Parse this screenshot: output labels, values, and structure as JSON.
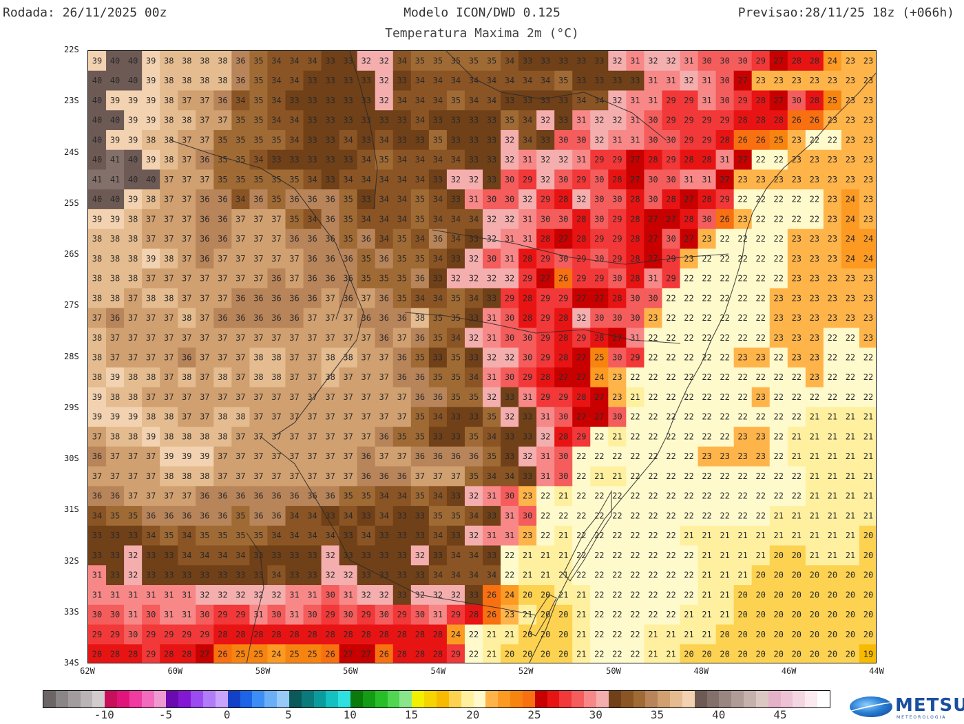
{
  "header": {
    "run": "Rodada: 26/11/2025 00z",
    "model": "Modelo ICON/DWD 0.125",
    "valid": "Previsao:28/11/25 18z (+066h)",
    "subtitle": "Temperatura Maxima 2m (°C)"
  },
  "map": {
    "lat_labels": [
      "22S",
      "23S",
      "24S",
      "25S",
      "26S",
      "27S",
      "28S",
      "29S",
      "30S",
      "31S",
      "32S",
      "33S",
      "34S"
    ],
    "lon_labels": [
      "62W",
      "60W",
      "58W",
      "56W",
      "54W",
      "52W",
      "50W",
      "48W",
      "46W",
      "44W"
    ],
    "lon_range": [
      -62,
      -44
    ],
    "lat_range": [
      -22,
      -34
    ],
    "value_grid": [
      [
        39,
        40,
        40,
        39,
        38,
        38,
        38,
        38,
        36,
        35,
        34,
        34,
        34,
        33,
        33,
        32,
        32,
        34,
        35,
        35,
        35,
        35,
        35,
        34,
        33,
        33,
        33,
        33,
        33,
        32,
        31,
        32,
        32,
        31,
        30,
        30,
        30,
        29,
        27,
        28,
        28,
        24,
        23,
        23
      ],
      [
        40,
        40,
        40,
        39,
        38,
        38,
        38,
        38,
        36,
        35,
        34,
        34,
        33,
        33,
        33,
        33,
        32,
        33,
        34,
        34,
        34,
        34,
        34,
        34,
        34,
        34,
        35,
        33,
        33,
        33,
        33,
        31,
        31,
        32,
        31,
        30,
        27,
        23,
        23,
        23,
        23,
        23,
        23,
        23
      ],
      [
        40,
        39,
        39,
        39,
        38,
        37,
        37,
        36,
        34,
        35,
        34,
        33,
        33,
        33,
        33,
        33,
        32,
        34,
        34,
        34,
        35,
        34,
        34,
        33,
        33,
        33,
        33,
        34,
        34,
        32,
        31,
        31,
        29,
        29,
        31,
        30,
        29,
        28,
        27,
        30,
        28,
        25,
        23,
        23
      ],
      [
        40,
        40,
        39,
        39,
        38,
        38,
        37,
        37,
        35,
        35,
        34,
        34,
        33,
        33,
        33,
        33,
        33,
        33,
        34,
        33,
        33,
        33,
        33,
        35,
        34,
        32,
        33,
        31,
        32,
        32,
        31,
        30,
        29,
        29,
        29,
        29,
        28,
        28,
        28,
        26,
        26,
        23,
        23,
        23
      ],
      [
        40,
        39,
        39,
        38,
        38,
        37,
        37,
        35,
        35,
        35,
        35,
        34,
        33,
        33,
        34,
        33,
        34,
        33,
        33,
        35,
        33,
        33,
        33,
        32,
        34,
        33,
        30,
        30,
        32,
        31,
        31,
        30,
        30,
        29,
        29,
        28,
        26,
        26,
        25,
        23,
        22,
        22,
        23,
        23
      ],
      [
        40,
        41,
        40,
        39,
        38,
        37,
        36,
        35,
        35,
        34,
        33,
        33,
        33,
        33,
        33,
        34,
        35,
        34,
        34,
        34,
        34,
        33,
        33,
        32,
        31,
        32,
        32,
        31,
        29,
        29,
        27,
        28,
        29,
        28,
        28,
        31,
        27,
        22,
        22,
        23,
        23,
        23,
        23,
        23
      ],
      [
        41,
        41,
        40,
        40,
        37,
        37,
        37,
        35,
        35,
        35,
        35,
        35,
        34,
        33,
        34,
        34,
        34,
        34,
        34,
        33,
        32,
        32,
        33,
        30,
        29,
        32,
        30,
        29,
        30,
        28,
        27,
        30,
        30,
        31,
        31,
        27,
        23,
        23,
        23,
        23,
        23,
        23,
        23,
        23
      ],
      [
        40,
        40,
        39,
        38,
        37,
        37,
        36,
        36,
        34,
        36,
        35,
        36,
        36,
        36,
        35,
        33,
        34,
        34,
        35,
        34,
        33,
        31,
        30,
        30,
        32,
        29,
        28,
        32,
        30,
        30,
        28,
        30,
        28,
        27,
        28,
        29,
        22,
        22,
        22,
        22,
        22,
        23,
        24,
        23
      ],
      [
        39,
        39,
        38,
        37,
        37,
        37,
        36,
        36,
        37,
        37,
        37,
        35,
        34,
        36,
        35,
        34,
        34,
        34,
        35,
        34,
        34,
        34,
        32,
        32,
        31,
        30,
        30,
        28,
        30,
        29,
        28,
        27,
        27,
        28,
        30,
        26,
        23,
        22,
        22,
        22,
        22,
        23,
        24,
        23
      ],
      [
        38,
        38,
        38,
        37,
        37,
        37,
        36,
        36,
        37,
        37,
        37,
        36,
        36,
        36,
        35,
        36,
        34,
        35,
        34,
        36,
        34,
        33,
        32,
        31,
        31,
        28,
        27,
        28,
        29,
        29,
        28,
        27,
        30,
        27,
        23,
        22,
        22,
        22,
        22,
        23,
        23,
        23,
        24,
        24
      ],
      [
        38,
        38,
        38,
        39,
        38,
        37,
        36,
        37,
        37,
        37,
        37,
        37,
        36,
        36,
        36,
        35,
        36,
        35,
        35,
        34,
        33,
        32,
        30,
        31,
        28,
        29,
        30,
        29,
        30,
        29,
        28,
        27,
        29,
        23,
        22,
        22,
        22,
        22,
        22,
        23,
        23,
        23,
        24,
        24
      ],
      [
        38,
        38,
        38,
        37,
        37,
        37,
        37,
        37,
        37,
        37,
        36,
        37,
        36,
        36,
        36,
        35,
        35,
        35,
        36,
        33,
        32,
        32,
        32,
        32,
        29,
        27,
        26,
        29,
        29,
        30,
        28,
        31,
        29,
        22,
        22,
        22,
        22,
        22,
        22,
        23,
        23,
        23,
        23,
        23
      ],
      [
        38,
        38,
        37,
        38,
        38,
        37,
        37,
        37,
        36,
        36,
        36,
        36,
        36,
        37,
        36,
        37,
        36,
        35,
        34,
        34,
        35,
        34,
        33,
        29,
        28,
        29,
        29,
        27,
        27,
        28,
        30,
        30,
        22,
        22,
        22,
        22,
        22,
        22,
        23,
        23,
        23,
        23,
        23,
        23
      ],
      [
        37,
        36,
        37,
        37,
        37,
        38,
        37,
        36,
        36,
        36,
        36,
        36,
        37,
        37,
        37,
        36,
        36,
        36,
        38,
        35,
        35,
        33,
        31,
        30,
        28,
        29,
        28,
        32,
        30,
        30,
        30,
        23,
        22,
        22,
        22,
        22,
        22,
        22,
        23,
        23,
        23,
        23,
        23,
        23
      ],
      [
        38,
        37,
        37,
        37,
        37,
        37,
        37,
        37,
        37,
        37,
        37,
        37,
        37,
        37,
        37,
        37,
        36,
        37,
        36,
        35,
        34,
        32,
        31,
        30,
        30,
        29,
        28,
        29,
        28,
        27,
        31,
        22,
        22,
        22,
        22,
        22,
        22,
        22,
        23,
        23,
        23,
        22,
        22,
        23
      ],
      [
        38,
        37,
        37,
        37,
        37,
        36,
        37,
        37,
        37,
        38,
        38,
        37,
        37,
        38,
        38,
        37,
        37,
        36,
        35,
        33,
        35,
        33,
        32,
        32,
        30,
        29,
        28,
        27,
        25,
        30,
        29,
        22,
        22,
        22,
        22,
        22,
        23,
        23,
        22,
        23,
        23,
        22,
        22,
        22
      ],
      [
        38,
        39,
        38,
        38,
        37,
        38,
        37,
        38,
        37,
        38,
        38,
        37,
        37,
        38,
        37,
        37,
        37,
        36,
        36,
        35,
        35,
        34,
        31,
        30,
        29,
        28,
        27,
        27,
        24,
        23,
        22,
        22,
        22,
        22,
        22,
        22,
        22,
        22,
        22,
        22,
        23,
        22,
        22,
        22
      ],
      [
        39,
        38,
        38,
        37,
        37,
        37,
        37,
        37,
        37,
        37,
        37,
        37,
        37,
        37,
        37,
        37,
        37,
        37,
        36,
        36,
        35,
        35,
        32,
        33,
        31,
        29,
        29,
        28,
        27,
        23,
        21,
        22,
        22,
        22,
        22,
        22,
        22,
        23,
        22,
        22,
        22,
        22,
        22,
        22
      ],
      [
        39,
        39,
        39,
        38,
        38,
        37,
        37,
        38,
        38,
        37,
        37,
        37,
        37,
        37,
        37,
        37,
        37,
        37,
        35,
        34,
        33,
        33,
        35,
        32,
        33,
        31,
        30,
        27,
        27,
        30,
        22,
        22,
        22,
        22,
        22,
        22,
        22,
        22,
        22,
        22,
        21,
        21,
        21,
        21
      ],
      [
        37,
        38,
        38,
        39,
        38,
        38,
        38,
        38,
        37,
        37,
        37,
        37,
        37,
        37,
        37,
        37,
        36,
        35,
        35,
        33,
        33,
        35,
        34,
        33,
        33,
        32,
        28,
        29,
        22,
        21,
        22,
        22,
        22,
        22,
        22,
        22,
        23,
        23,
        22,
        21,
        21,
        21,
        21,
        21
      ],
      [
        36,
        37,
        37,
        37,
        39,
        39,
        39,
        37,
        37,
        37,
        37,
        37,
        37,
        37,
        37,
        36,
        37,
        37,
        36,
        36,
        36,
        36,
        35,
        33,
        32,
        31,
        30,
        22,
        22,
        22,
        22,
        22,
        22,
        22,
        23,
        23,
        23,
        23,
        22,
        21,
        21,
        21,
        21,
        21
      ],
      [
        37,
        37,
        37,
        37,
        38,
        38,
        38,
        37,
        37,
        37,
        37,
        37,
        37,
        37,
        37,
        36,
        36,
        36,
        37,
        37,
        37,
        35,
        34,
        34,
        33,
        31,
        30,
        22,
        21,
        21,
        22,
        22,
        22,
        22,
        22,
        22,
        22,
        22,
        22,
        22,
        21,
        21,
        21,
        21
      ],
      [
        36,
        36,
        37,
        37,
        37,
        37,
        36,
        36,
        36,
        36,
        36,
        36,
        36,
        36,
        35,
        35,
        34,
        34,
        35,
        34,
        33,
        32,
        31,
        30,
        23,
        22,
        21,
        22,
        22,
        22,
        22,
        22,
        22,
        22,
        22,
        22,
        22,
        22,
        22,
        22,
        21,
        21,
        21,
        21
      ],
      [
        34,
        35,
        35,
        36,
        36,
        36,
        36,
        36,
        35,
        36,
        36,
        34,
        34,
        33,
        34,
        33,
        34,
        33,
        33,
        35,
        35,
        34,
        33,
        31,
        30,
        22,
        22,
        22,
        22,
        22,
        22,
        22,
        22,
        22,
        22,
        22,
        22,
        22,
        21,
        21,
        21,
        21,
        21,
        21
      ],
      [
        33,
        33,
        33,
        34,
        35,
        34,
        35,
        35,
        35,
        35,
        34,
        34,
        34,
        34,
        33,
        34,
        33,
        33,
        33,
        34,
        33,
        32,
        31,
        31,
        23,
        22,
        21,
        22,
        22,
        22,
        22,
        22,
        22,
        21,
        21,
        21,
        21,
        21,
        21,
        21,
        21,
        21,
        21,
        20
      ],
      [
        33,
        33,
        32,
        33,
        33,
        34,
        34,
        34,
        34,
        33,
        33,
        33,
        33,
        32,
        33,
        33,
        33,
        33,
        32,
        33,
        34,
        34,
        33,
        22,
        21,
        21,
        21,
        22,
        22,
        22,
        22,
        22,
        22,
        22,
        21,
        21,
        21,
        21,
        20,
        20,
        21,
        21,
        21,
        20
      ],
      [
        31,
        33,
        32,
        33,
        33,
        33,
        33,
        33,
        33,
        33,
        34,
        33,
        33,
        32,
        32,
        33,
        33,
        33,
        33,
        34,
        34,
        34,
        34,
        22,
        21,
        21,
        21,
        22,
        22,
        22,
        22,
        22,
        22,
        22,
        21,
        21,
        21,
        20,
        20,
        20,
        20,
        20,
        20,
        20
      ],
      [
        31,
        31,
        31,
        31,
        31,
        31,
        32,
        32,
        32,
        32,
        32,
        31,
        31,
        30,
        31,
        32,
        32,
        33,
        32,
        32,
        32,
        33,
        26,
        24,
        20,
        20,
        21,
        21,
        22,
        22,
        22,
        22,
        22,
        22,
        21,
        21,
        20,
        20,
        20,
        20,
        20,
        20,
        20,
        20
      ],
      [
        30,
        30,
        31,
        30,
        31,
        31,
        30,
        29,
        29,
        31,
        30,
        31,
        30,
        29,
        30,
        29,
        30,
        29,
        30,
        31,
        29,
        28,
        26,
        23,
        21,
        20,
        20,
        21,
        22,
        22,
        22,
        22,
        22,
        21,
        21,
        21,
        20,
        20,
        20,
        20,
        20,
        20,
        20,
        20
      ],
      [
        29,
        29,
        30,
        29,
        29,
        29,
        29,
        28,
        28,
        28,
        28,
        28,
        28,
        28,
        28,
        28,
        28,
        28,
        28,
        28,
        24,
        22,
        21,
        21,
        20,
        20,
        20,
        21,
        22,
        22,
        22,
        21,
        21,
        21,
        21,
        20,
        20,
        20,
        20,
        20,
        20,
        20,
        20,
        20
      ],
      [
        28,
        28,
        28,
        29,
        28,
        28,
        27,
        26,
        25,
        25,
        24,
        25,
        25,
        26,
        27,
        27,
        26,
        28,
        28,
        28,
        29,
        22,
        21,
        20,
        20,
        20,
        20,
        21,
        22,
        22,
        22,
        21,
        21,
        20,
        20,
        20,
        20,
        20,
        20,
        20,
        20,
        20,
        20,
        19
      ]
    ]
  },
  "colorbar": {
    "colors": [
      "#6b6566",
      "#8a8587",
      "#a29c9e",
      "#bab4b6",
      "#d3cccf",
      "#c8105a",
      "#e0147a",
      "#f03ca0",
      "#f26bbd",
      "#f09ad2",
      "#6a0ab0",
      "#8218d2",
      "#9a4cf0",
      "#b07cf8",
      "#c9a4fc",
      "#1440c8",
      "#1e64e6",
      "#3c8ef6",
      "#6aaef8",
      "#98caf8",
      "#0a5a5a",
      "#0a7a7a",
      "#0a9c9c",
      "#14c0c0",
      "#2ee0e0",
      "#0a7a0a",
      "#149c14",
      "#28be28",
      "#50d650",
      "#8ae68a",
      "#f0f000",
      "#f5d400",
      "#f8ba00",
      "#fcd250",
      "#fff0a0",
      "#fffacc",
      "#ffb44a",
      "#fc9a22",
      "#f88410",
      "#f87010",
      "#c80000",
      "#e81414",
      "#f23838",
      "#f55c5c",
      "#f88888",
      "#f4aeae",
      "#704018",
      "#8a5424",
      "#a06a34",
      "#b8845a",
      "#d0a070",
      "#e4bc90",
      "#f2d2b0",
      "#6e5a55",
      "#84706a",
      "#9a8680",
      "#b09c96",
      "#c6b2ac",
      "#dcc8c2",
      "#e4b2c8",
      "#ecc2d4",
      "#f4d6e2",
      "#fbeaf0",
      "#ffffff"
    ],
    "labels": [
      "-10",
      "-5",
      "0",
      "5",
      "10",
      "15",
      "20",
      "25",
      "30",
      "35",
      "40",
      "45"
    ]
  },
  "logo": {
    "brand": "METSUL",
    "tagline": "METEOROLOGIA"
  }
}
